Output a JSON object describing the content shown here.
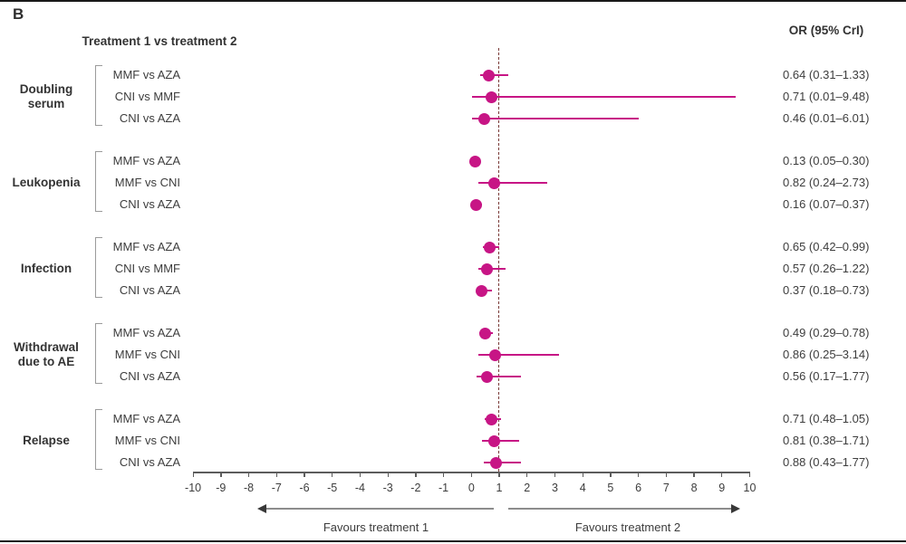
{
  "chart_data": {
    "type": "scatter",
    "subtype": "forest-plot",
    "panel_label": "B",
    "column_headers": {
      "left": "Treatment 1 vs treatment 2",
      "right": "OR (95% CrI)"
    },
    "axis": {
      "min": -10,
      "max": 10,
      "tick_step": 1,
      "ticks": [
        -10,
        -9,
        -8,
        -7,
        -6,
        -5,
        -4,
        -3,
        -2,
        -1,
        0,
        1,
        2,
        3,
        4,
        5,
        6,
        7,
        8,
        9,
        10
      ],
      "reference_line": 1,
      "grid": false
    },
    "footer": {
      "left_arrow_label": "Favours treatment 1",
      "right_arrow_label": "Favours treatment 2"
    },
    "groups": [
      {
        "outcome": "Doubling serum",
        "rows": [
          {
            "comparison": "MMF vs AZA",
            "or": 0.64,
            "ci_low": 0.31,
            "ci_high": 1.33,
            "label": "0.64 (0.31–1.33)"
          },
          {
            "comparison": "CNI vs MMF",
            "or": 0.71,
            "ci_low": 0.01,
            "ci_high": 9.48,
            "label": "0.71 (0.01–9.48)"
          },
          {
            "comparison": "CNI vs AZA",
            "or": 0.46,
            "ci_low": 0.01,
            "ci_high": 6.01,
            "label": "0.46 (0.01–6.01)"
          }
        ]
      },
      {
        "outcome": "Leukopenia",
        "rows": [
          {
            "comparison": "MMF vs AZA",
            "or": 0.13,
            "ci_low": 0.05,
            "ci_high": 0.3,
            "label": "0.13 (0.05–0.30)"
          },
          {
            "comparison": "MMF vs CNI",
            "or": 0.82,
            "ci_low": 0.24,
            "ci_high": 2.73,
            "label": "0.82 (0.24–2.73)"
          },
          {
            "comparison": "CNI vs AZA",
            "or": 0.16,
            "ci_low": 0.07,
            "ci_high": 0.37,
            "label": "0.16 (0.07–0.37)"
          }
        ]
      },
      {
        "outcome": "Infection",
        "rows": [
          {
            "comparison": "MMF vs AZA",
            "or": 0.65,
            "ci_low": 0.42,
            "ci_high": 0.99,
            "label": "0.65 (0.42–0.99)"
          },
          {
            "comparison": "CNI vs MMF",
            "or": 0.57,
            "ci_low": 0.26,
            "ci_high": 1.22,
            "label": "0.57 (0.26–1.22)"
          },
          {
            "comparison": "CNI vs AZA",
            "or": 0.37,
            "ci_low": 0.18,
            "ci_high": 0.73,
            "label": "0.37 (0.18–0.73)"
          }
        ]
      },
      {
        "outcome": "Withdrawal due to AE",
        "rows": [
          {
            "comparison": "MMF vs AZA",
            "or": 0.49,
            "ci_low": 0.29,
            "ci_high": 0.78,
            "label": "0.49 (0.29–0.78)"
          },
          {
            "comparison": "MMF vs CNI",
            "or": 0.86,
            "ci_low": 0.25,
            "ci_high": 3.14,
            "label": "0.86 (0.25–3.14)"
          },
          {
            "comparison": "CNI vs AZA",
            "or": 0.56,
            "ci_low": 0.17,
            "ci_high": 1.77,
            "label": "0.56 (0.17–1.77)"
          }
        ]
      },
      {
        "outcome": "Relapse",
        "rows": [
          {
            "comparison": "MMF vs AZA",
            "or": 0.71,
            "ci_low": 0.48,
            "ci_high": 1.05,
            "label": "0.71 (0.48–1.05)"
          },
          {
            "comparison": "MMF vs CNI",
            "or": 0.81,
            "ci_low": 0.38,
            "ci_high": 1.71,
            "label": "0.81 (0.38–1.71)"
          },
          {
            "comparison": "CNI vs AZA",
            "or": 0.88,
            "ci_low": 0.43,
            "ci_high": 1.77,
            "label": "0.88 (0.43–1.77)"
          }
        ]
      }
    ],
    "colors": {
      "marker": "#c71585",
      "ci_line": "#c71585",
      "reference_line": "#7a3b38",
      "axis": "#5c5c5c",
      "text": "#3d3d3d"
    }
  }
}
